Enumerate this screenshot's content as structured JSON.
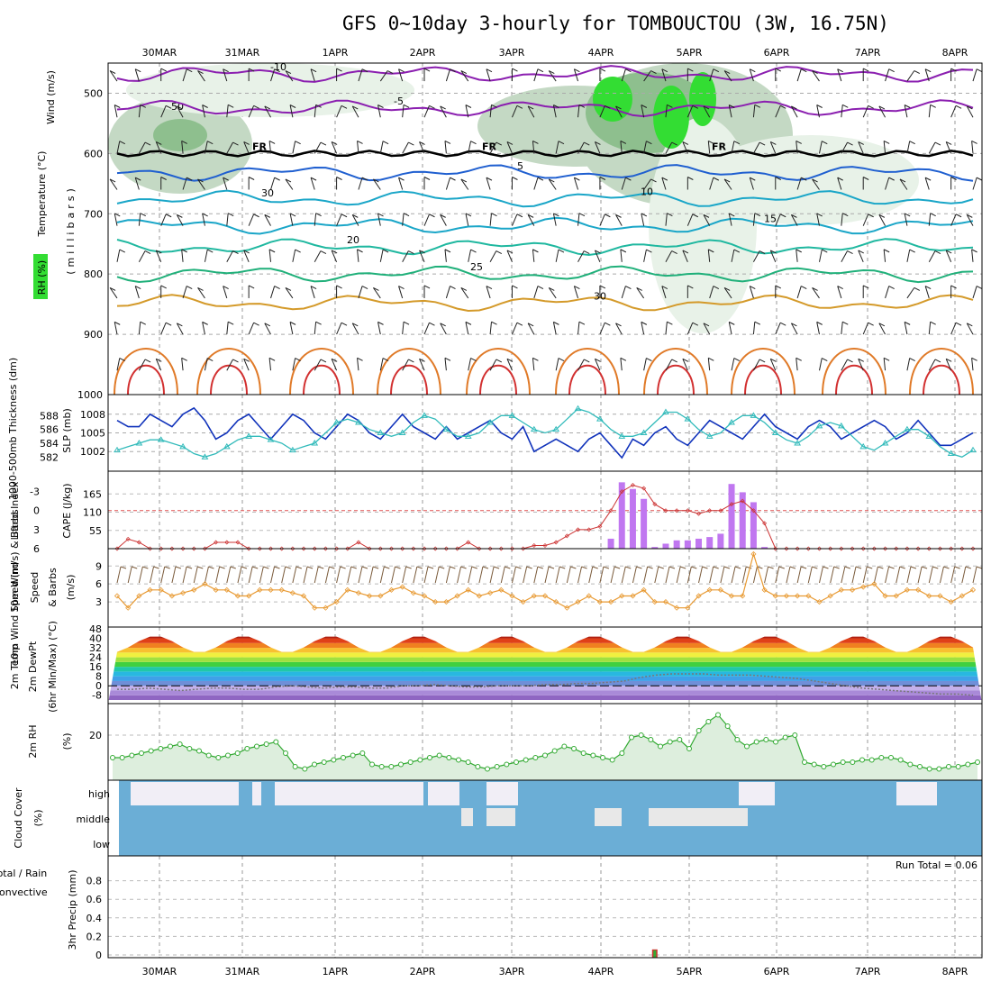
{
  "chart_data": {
    "type": "meteogram",
    "title": "GFS 0~10day 3-hourly for TOMBOUCTOU (3W, 16.75N)",
    "dates": [
      "30MAR",
      "31MAR",
      "1APR",
      "2APR",
      "3APR",
      "4APR",
      "5APR",
      "6APR",
      "7APR",
      "8APR"
    ],
    "colors": {
      "rh_light": "#e8f2e8",
      "rh_mid": "#c4d9c4",
      "rh_dark": "#8ebf8e",
      "rh_green": "#33dd33",
      "wind_slp": "#1133bb",
      "thickness": "#33bbbb",
      "li_line": "#cc3333",
      "cape_bar": "#c077f0",
      "wind_speed": "#e89a33",
      "barb10m": "#7a5a3a",
      "rh2m_line": "#33aa33",
      "rh2m_fill": "#ddeedd",
      "cloud": "#6baed6",
      "cloud_clear": "#f1eef6"
    },
    "panels": [
      {
        "id": "upper_air",
        "ylabels": [
          "Wind (m/s)",
          "Temperature (°C)",
          "RH (%)"
        ],
        "yaxis_label": "(millibars)",
        "pressure_ticks": [
          500,
          600,
          700,
          800,
          900,
          1000
        ],
        "ylim": [
          450,
          1000
        ],
        "freezing_label": "FR",
        "freezing_level_mb": 600,
        "isotherms": [
          {
            "temp": -10,
            "mb": 468,
            "color": "#8b1fb0",
            "label": "-10"
          },
          {
            "temp": -5,
            "mb": 525,
            "color": "#8b1fb0",
            "label": "-5"
          },
          {
            "temp": 5,
            "mb": 632,
            "color": "#1f5fd0",
            "label": "5"
          },
          {
            "temp": 10,
            "mb": 675,
            "color": "#1aa6c8",
            "label": "10"
          },
          {
            "temp": 15,
            "mb": 720,
            "color": "#1aa6c8",
            "label": "15"
          },
          {
            "temp": 20,
            "mb": 755,
            "color": "#20b8a0",
            "label": "20"
          },
          {
            "temp": 25,
            "mb": 800,
            "color": "#20b07a",
            "label": "25"
          },
          {
            "temp": 30,
            "mb": 848,
            "color": "#d49a2a",
            "label": "30"
          }
        ],
        "rh_contour_labels": [
          "50",
          "30"
        ]
      },
      {
        "id": "thickness_slp",
        "ylabels": [
          "1000-500mb Thickness (dm)",
          "SLP (mb)"
        ],
        "thickness_ticks": [
          582,
          584,
          586,
          588
        ],
        "slp_ticks": [
          1002,
          1005,
          1008
        ],
        "slp": [
          1007,
          1006,
          1006,
          1008,
          1007,
          1006,
          1008,
          1009,
          1007,
          1004,
          1005,
          1007,
          1008,
          1006,
          1004,
          1006,
          1008,
          1007,
          1005,
          1004,
          1006,
          1008,
          1007,
          1005,
          1004,
          1006,
          1008,
          1006,
          1005,
          1004,
          1006,
          1004,
          1005,
          1006,
          1007,
          1005,
          1004,
          1006,
          1002,
          1003,
          1004,
          1003,
          1002,
          1004,
          1005,
          1003,
          1001,
          1004,
          1003,
          1005,
          1006,
          1004,
          1003,
          1005,
          1007,
          1006,
          1005,
          1004,
          1006,
          1008,
          1006,
          1005,
          1004,
          1006,
          1007,
          1006,
          1004,
          1005,
          1006,
          1007,
          1006,
          1004,
          1005,
          1007,
          1005,
          1003,
          1003,
          1004,
          1005
        ],
        "thickness": [
          583,
          583.5,
          584,
          584.5,
          584.5,
          584,
          583.5,
          582.5,
          582,
          582.5,
          583.5,
          584.5,
          585,
          585,
          584.5,
          584,
          583,
          583.5,
          584,
          585.5,
          587,
          587.5,
          587,
          586,
          585.5,
          585,
          585.5,
          587,
          588,
          587.5,
          586,
          585,
          585,
          585.5,
          587,
          588,
          588,
          587,
          586,
          585.5,
          586,
          587.5,
          589,
          588.5,
          587.5,
          586,
          585,
          585,
          585.5,
          587,
          588.5,
          588.5,
          587.5,
          586,
          585,
          585.5,
          587,
          588,
          588,
          587,
          585.5,
          584.5,
          584,
          585,
          586.5,
          587,
          586.5,
          585,
          583.5,
          583,
          584,
          585,
          586,
          586,
          585,
          583.5,
          582.5,
          582,
          583
        ]
      },
      {
        "id": "instability",
        "ylabels": [
          "Lifted Index",
          "CAPE (J/kg)"
        ],
        "li_ticks": [
          -3,
          0,
          3,
          6
        ],
        "cape_ticks": [
          55,
          110,
          165
        ],
        "cape_bars": [
          {
            "step": 45,
            "value": 30
          },
          {
            "step": 46,
            "value": 200
          },
          {
            "step": 47,
            "value": 180
          },
          {
            "step": 48,
            "value": 150
          },
          {
            "step": 49,
            "value": 5
          },
          {
            "step": 50,
            "value": 15
          },
          {
            "step": 51,
            "value": 25
          },
          {
            "step": 52,
            "value": 25
          },
          {
            "step": 53,
            "value": 30
          },
          {
            "step": 54,
            "value": 35
          },
          {
            "step": 55,
            "value": 45
          },
          {
            "step": 56,
            "value": 195
          },
          {
            "step": 57,
            "value": 170
          },
          {
            "step": 58,
            "value": 140
          },
          {
            "step": 59,
            "value": 5
          }
        ],
        "lifted_index": [
          6,
          4.5,
          5,
          6,
          6,
          6,
          6,
          6,
          6,
          5,
          5,
          5,
          6,
          6,
          6,
          6,
          6,
          6,
          6,
          6,
          6,
          6,
          5,
          6,
          6,
          6,
          6,
          6,
          6,
          6,
          6,
          6,
          5,
          6,
          6,
          6,
          6,
          6,
          5.5,
          5.5,
          5,
          4,
          3,
          3,
          2.5,
          0,
          -3,
          -4,
          -3.5,
          -1,
          0,
          0,
          0,
          0.5,
          0,
          0,
          -1,
          -1.5,
          0,
          2,
          6,
          6,
          6,
          6,
          6,
          6,
          6,
          6,
          6,
          6,
          6,
          6,
          6,
          6,
          6,
          6,
          6,
          6,
          6
        ]
      },
      {
        "id": "wind10m",
        "ylabels": [
          "10m Wind Speed (m/s) & Barbs"
        ],
        "ticks": [
          3,
          6,
          9
        ],
        "speed": [
          4,
          2,
          4,
          5,
          5,
          4,
          4.5,
          5,
          6,
          5,
          5,
          4,
          4,
          5,
          5,
          5,
          4.5,
          4,
          2,
          2,
          3,
          5,
          4.5,
          4,
          4,
          5,
          5.5,
          4.5,
          4,
          3,
          3,
          4,
          5,
          4,
          4.5,
          5,
          4,
          3,
          4,
          4,
          3,
          2,
          3,
          4,
          3,
          3,
          4,
          4,
          5,
          3,
          3,
          2,
          2,
          4,
          5,
          5,
          4,
          4,
          11,
          5,
          4,
          4,
          4,
          4,
          3,
          4,
          5,
          5,
          5.5,
          6,
          4,
          4,
          5,
          5,
          4,
          4,
          3,
          4,
          5,
          5,
          4,
          4,
          5,
          5,
          4,
          4,
          5
        ]
      },
      {
        "id": "temp2m",
        "ylabels": [
          "2m Temp",
          "2m DewPt",
          "(6hr Min/Max) (°C)"
        ],
        "ticks": [
          -8,
          0,
          8,
          16,
          24,
          32,
          40,
          48
        ],
        "temp_amplitude_note": "diurnal 28-42",
        "dewpoint": [
          -3,
          -3,
          -2,
          -3,
          -4,
          -3,
          -2,
          -2,
          -3,
          -3,
          -1,
          0,
          -1,
          -2,
          -1,
          -1,
          -2,
          -2,
          0,
          0,
          1,
          0,
          -1,
          -1,
          0,
          0,
          0,
          1,
          1,
          2,
          2,
          3,
          4,
          7,
          9,
          10,
          10,
          10,
          9,
          9,
          9,
          8,
          7,
          6,
          4,
          2,
          0,
          -2,
          -3,
          -4,
          -5,
          -6,
          -7,
          -7,
          -8
        ]
      },
      {
        "id": "rh2m",
        "ylabels": [
          "2m RH",
          "(%)"
        ],
        "ticks": [
          20
        ],
        "values": [
          10,
          10,
          11,
          12,
          13,
          14,
          15,
          16,
          14,
          13,
          11,
          10,
          11,
          12,
          14,
          15,
          16,
          17,
          12,
          6,
          5,
          7,
          8,
          9,
          10,
          11,
          12,
          7,
          6,
          6,
          7,
          8,
          9,
          10,
          11,
          10,
          9,
          8,
          6,
          5,
          6,
          7,
          8,
          9,
          10,
          11,
          13,
          15,
          14,
          12,
          11,
          10,
          9,
          12,
          19,
          20,
          18,
          15,
          17,
          18,
          14,
          22,
          26,
          29,
          24,
          18,
          15,
          17,
          18,
          17,
          19,
          20,
          8,
          7,
          6,
          7,
          8,
          8,
          9,
          9,
          10,
          10,
          9,
          7,
          6,
          5,
          5,
          6,
          6,
          7,
          8
        ]
      },
      {
        "id": "cloud",
        "ylabels": [
          "Cloud Cover",
          "(%)"
        ],
        "levels": [
          "high",
          "middle",
          "low"
        ]
      },
      {
        "id": "precip",
        "ylabels": [
          "3hr Precip (mm)",
          "Total / Rain",
          "Convective"
        ],
        "ticks": [
          "0",
          "0.2",
          "0.4",
          "0.6",
          "0.8"
        ],
        "ylim": [
          0,
          1.0
        ],
        "run_total_text": "Run Total = 0.06",
        "bars": [
          {
            "step": 49,
            "value": 0.06
          }
        ]
      }
    ]
  }
}
